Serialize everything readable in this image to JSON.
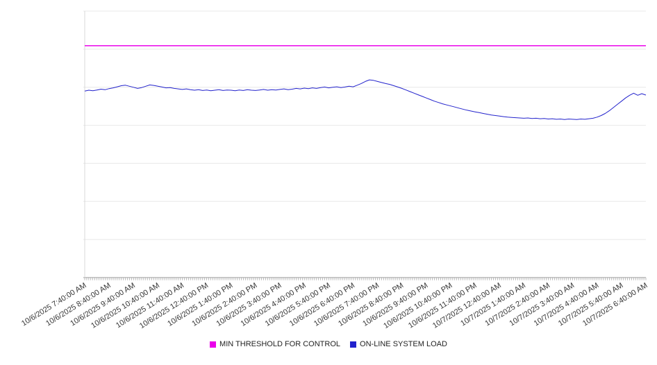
{
  "chart_data": {
    "type": "line",
    "title": "",
    "xlabel": "",
    "ylabel": "",
    "ylim": [
      0,
      100
    ],
    "grid": "horizontal",
    "legend_position": "bottom-center",
    "x_tick_labels": [
      "10/6/2025 7:40:00 AM",
      "10/6/2025 8:40:00 AM",
      "10/6/2025 9:40:00 AM",
      "10/6/2025 10:40:00 AM",
      "10/6/2025 11:40:00 AM",
      "10/6/2025 12:40:00 PM",
      "10/6/2025 1:40:00 PM",
      "10/6/2025 2:40:00 PM",
      "10/6/2025 3:40:00 PM",
      "10/6/2025 4:40:00 PM",
      "10/6/2025 5:40:00 PM",
      "10/6/2025 6:40:00 PM",
      "10/6/2025 7:40:00 PM",
      "10/6/2025 8:40:00 PM",
      "10/6/2025 9:40:00 PM",
      "10/6/2025 10:40:00 PM",
      "10/6/2025 11:40:00 PM",
      "10/7/2025 12:40:00 AM",
      "10/7/2025 1:40:00 AM",
      "10/7/2025 2:40:00 AM",
      "10/7/2025 3:40:00 AM",
      "10/7/2025 4:40:00 AM",
      "10/7/2025 5:40:00 AM",
      "10/7/2025 6:40:00 AM"
    ],
    "series": [
      {
        "name": "MIN THRESHOLD FOR CONTROL",
        "color": "#ea00ea",
        "style": "constant-line",
        "value": 87
      },
      {
        "name": "ON-LINE SYSTEM LOAD",
        "color": "#2222cc",
        "style": "line",
        "interval_minutes": 10,
        "values": [
          70.0,
          70.3,
          70.1,
          70.4,
          70.7,
          70.5,
          70.9,
          71.2,
          71.6,
          72.0,
          72.2,
          71.8,
          71.4,
          71.0,
          71.3,
          71.8,
          72.3,
          72.1,
          71.8,
          71.5,
          71.2,
          71.3,
          71.0,
          70.8,
          70.6,
          70.8,
          70.5,
          70.3,
          70.5,
          70.2,
          70.4,
          70.1,
          70.3,
          70.5,
          70.2,
          70.4,
          70.3,
          70.1,
          70.4,
          70.2,
          70.5,
          70.3,
          70.2,
          70.4,
          70.6,
          70.3,
          70.5,
          70.4,
          70.6,
          70.8,
          70.5,
          70.7,
          71.0,
          70.8,
          71.1,
          70.9,
          71.2,
          71.0,
          71.3,
          71.5,
          71.2,
          71.4,
          71.6,
          71.3,
          71.5,
          71.8,
          71.6,
          72.2,
          72.8,
          73.6,
          74.2,
          74.0,
          73.6,
          73.2,
          72.8,
          72.5,
          72.0,
          71.5,
          71.0,
          70.4,
          69.8,
          69.2,
          68.6,
          68.0,
          67.4,
          66.8,
          66.2,
          65.7,
          65.2,
          64.8,
          64.4,
          64.0,
          63.6,
          63.2,
          62.8,
          62.5,
          62.2,
          61.9,
          61.6,
          61.3,
          61.0,
          60.8,
          60.6,
          60.4,
          60.2,
          60.1,
          60.0,
          59.9,
          59.8,
          59.9,
          59.7,
          59.8,
          59.6,
          59.7,
          59.5,
          59.6,
          59.4,
          59.5,
          59.3,
          59.5,
          59.4,
          59.3,
          59.5,
          59.4,
          59.6,
          59.8,
          60.2,
          60.8,
          61.6,
          62.6,
          63.8,
          65.0,
          66.2,
          67.4,
          68.4,
          69.2,
          68.4,
          69.0,
          68.5
        ]
      }
    ]
  }
}
